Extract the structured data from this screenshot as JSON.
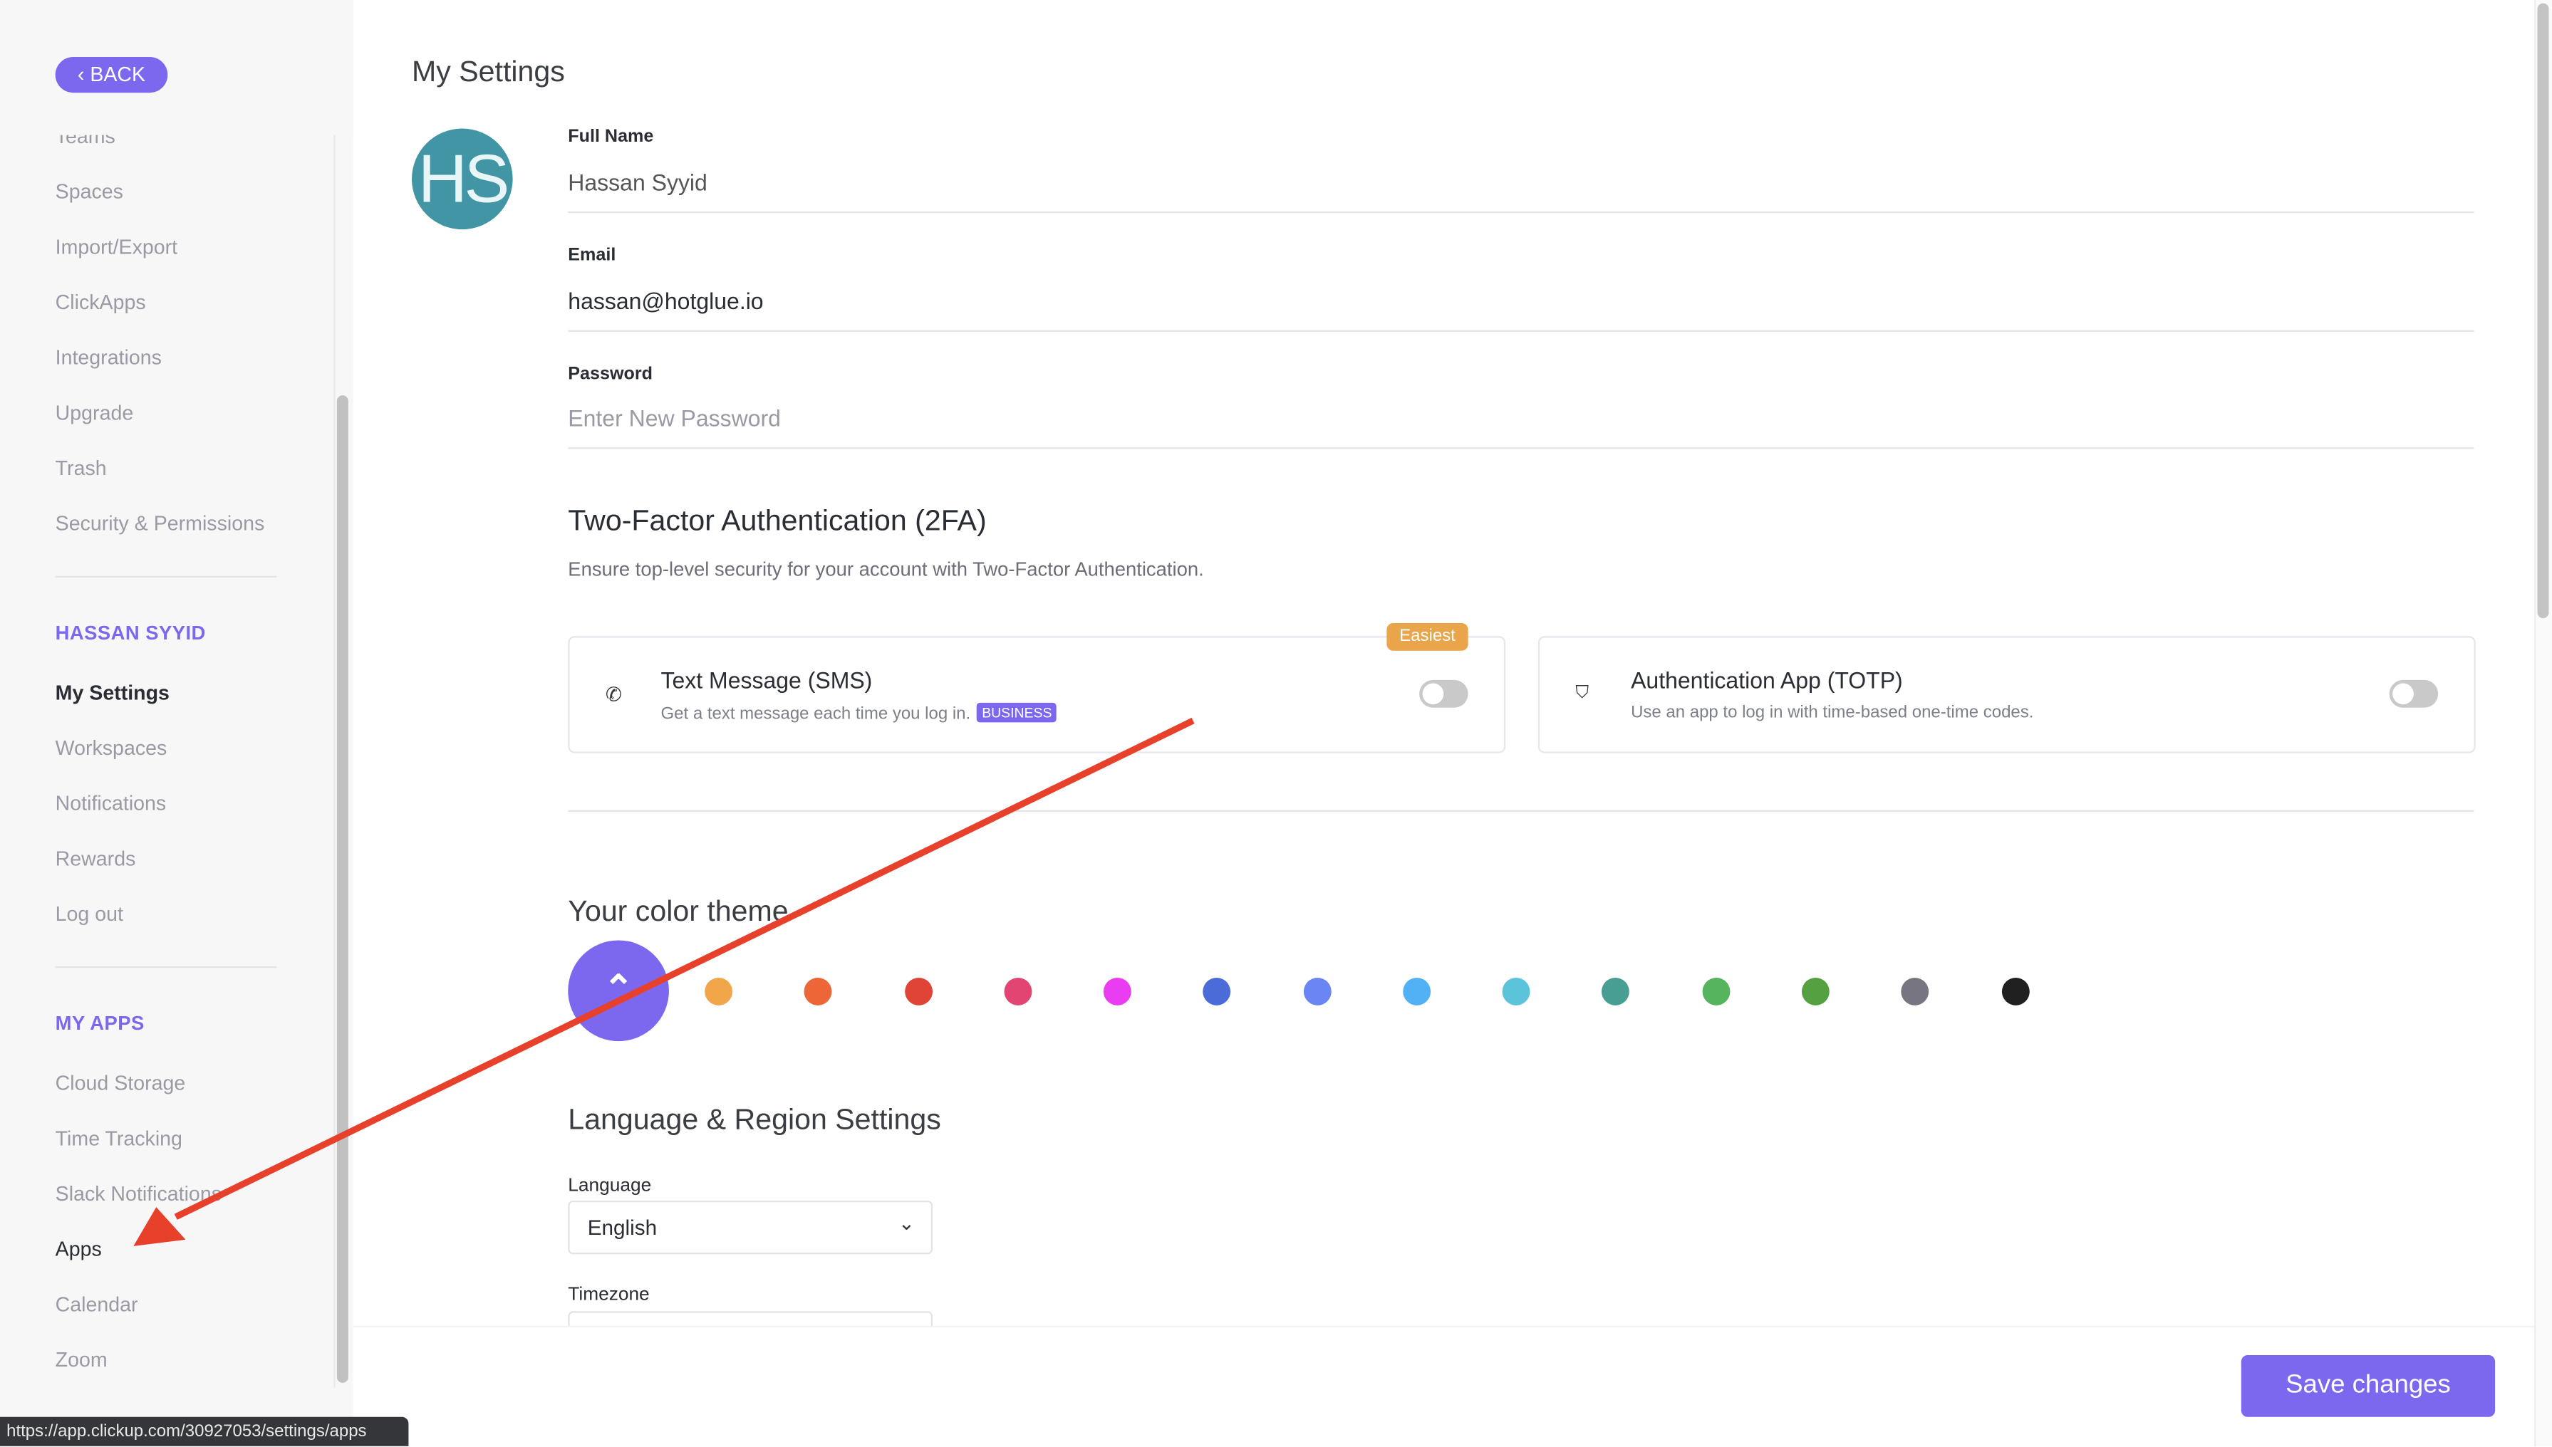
{
  "sidebar": {
    "back_label": "‹ BACK",
    "workspace_items": [
      "Teams",
      "Spaces",
      "Import/Export",
      "ClickApps",
      "Integrations",
      "Upgrade",
      "Trash",
      "Security & Permissions"
    ],
    "user_section": "HASSAN SYYID",
    "user_items": [
      "My Settings",
      "Workspaces",
      "Notifications",
      "Rewards",
      "Log out"
    ],
    "apps_section": "MY APPS",
    "app_items": [
      "Cloud Storage",
      "Time Tracking",
      "Slack Notifications",
      "Apps",
      "Calendar",
      "Zoom"
    ],
    "active_item": "My Settings",
    "hovered_item": "Apps"
  },
  "main": {
    "title": "My Settings",
    "avatar_initials": "HS",
    "avatar_color": "#4295a5",
    "full_name_label": "Full Name",
    "full_name_value": "Hassan Syyid",
    "email_label": "Email",
    "email_value": "hassan@hotglue.io",
    "password_label": "Password",
    "password_placeholder": "Enter New Password",
    "tfa": {
      "heading": "Two-Factor Authentication (2FA)",
      "description": "Ensure top-level security for your account with Two-Factor Authentication.",
      "sms": {
        "title": "Text Message (SMS)",
        "desc": "Get a text message each time you log in.",
        "badge": "BUSINESS",
        "tag": "Easiest",
        "enabled": false,
        "icon": "phone-icon"
      },
      "totp": {
        "title": "Authentication App (TOTP)",
        "desc": "Use an app to log in with time-based one-time codes.",
        "enabled": false,
        "icon": "shield-icon"
      }
    },
    "theme": {
      "heading": "Your color theme",
      "selected": "#7b68ee",
      "colors": [
        "#f2a64a",
        "#ec6638",
        "#e04436",
        "#e24572",
        "#ea3cf0",
        "#4a6bd8",
        "#6a86f5",
        "#52b1f5",
        "#5bc4da",
        "#489e93",
        "#56b45f",
        "#55a040",
        "#787583",
        "#202020"
      ]
    },
    "region": {
      "heading": "Language & Region Settings",
      "language_label": "Language",
      "language_value": "English",
      "timezone_label": "Timezone"
    },
    "save_label": "Save changes"
  },
  "status_url": "https://app.clickup.com/30927053/settings/apps",
  "colors": {
    "accent": "#7b68ee",
    "annotation_arrow": "#e8412b"
  }
}
